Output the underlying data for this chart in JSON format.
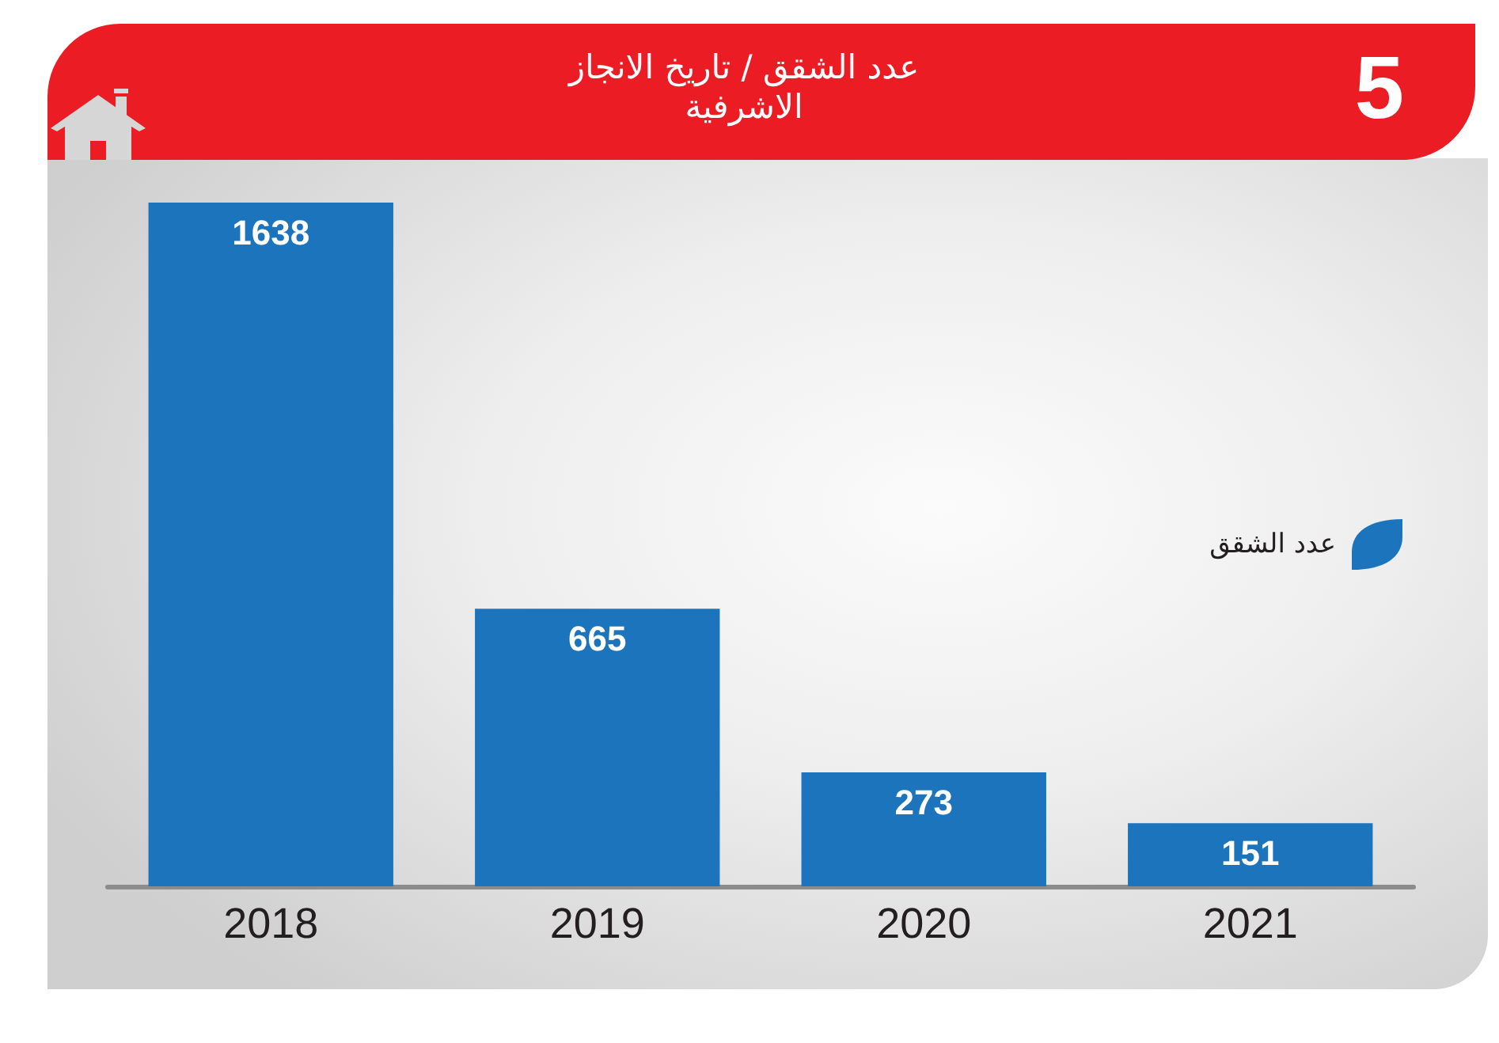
{
  "chart_data": {
    "type": "bar",
    "title": "عدد الشقق / تاريخ الانجاز",
    "subtitle": "الاشرفية",
    "categories": [
      "2018",
      "2019",
      "2020",
      "2021"
    ],
    "series": [
      {
        "name": "عدد الشقق",
        "color": "#1c75bc",
        "values": [
          1638,
          665,
          273,
          151
        ]
      }
    ],
    "data_labels": true,
    "legend": "right",
    "grid": false,
    "tick_labels": "x",
    "annotations": [
      "5"
    ]
  }
}
